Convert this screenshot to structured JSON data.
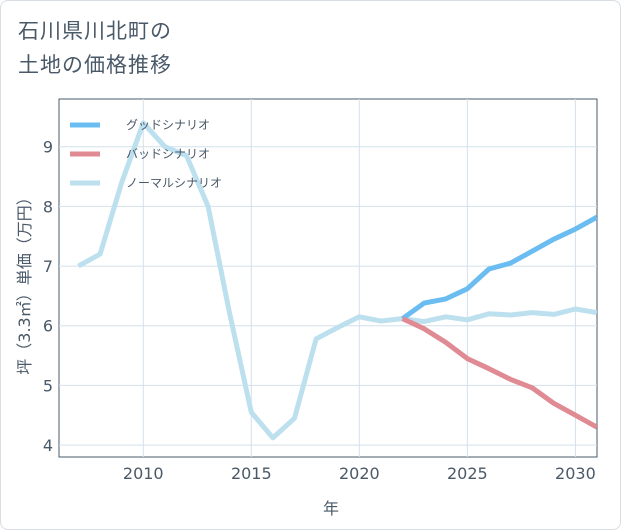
{
  "title_lines": [
    "石川県川北町の",
    "土地の価格推移"
  ],
  "chart_data": {
    "type": "line",
    "title": "石川県川北町の土地の価格推移",
    "xlabel": "年",
    "ylabel": "坪（3.3㎡）単価（万円）",
    "xlim": [
      2006.1,
      2031
    ],
    "ylim": [
      3.8,
      9.8
    ],
    "xticks": [
      2010,
      2015,
      2020,
      2025,
      2030
    ],
    "yticks": [
      4,
      5,
      6,
      7,
      8,
      9
    ],
    "series": [
      {
        "name": "グッドシナリオ",
        "color": "#6bbcf0",
        "x": [
          2022,
          2023,
          2024,
          2025,
          2026,
          2027,
          2028,
          2029,
          2030,
          2031
        ],
        "values": [
          6.12,
          6.38,
          6.45,
          6.62,
          6.95,
          7.05,
          7.25,
          7.45,
          7.62,
          7.82
        ]
      },
      {
        "name": "バッドシナリオ",
        "color": "#e08a93",
        "x": [
          2022,
          2023,
          2024,
          2025,
          2026,
          2027,
          2028,
          2029,
          2030,
          2031
        ],
        "values": [
          6.12,
          5.95,
          5.72,
          5.45,
          5.28,
          5.1,
          4.96,
          4.7,
          4.5,
          4.3
        ]
      },
      {
        "name": "ノーマルシナリオ",
        "color": "#bde0ee",
        "x": [
          2007,
          2008,
          2009,
          2010,
          2011,
          2012,
          2013,
          2014,
          2015,
          2016,
          2017,
          2018,
          2019,
          2020,
          2021,
          2022,
          2023,
          2024,
          2025,
          2026,
          2027,
          2028,
          2029,
          2030,
          2031
        ],
        "values": [
          7.0,
          7.2,
          8.4,
          9.4,
          9.0,
          8.85,
          8.0,
          6.2,
          4.55,
          4.12,
          4.45,
          5.78,
          5.97,
          6.15,
          6.08,
          6.12,
          6.07,
          6.15,
          6.1,
          6.2,
          6.18,
          6.22,
          6.19,
          6.28,
          6.22
        ]
      }
    ]
  }
}
